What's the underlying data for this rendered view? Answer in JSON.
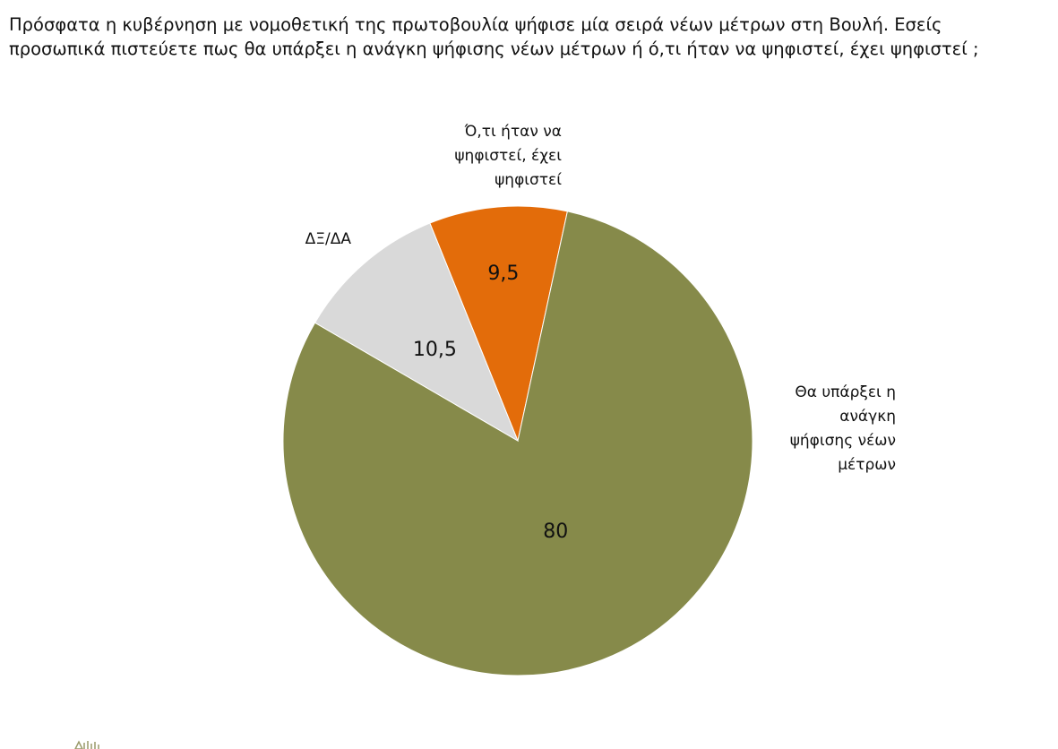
{
  "question": {
    "line1": "Πρόσφατα η κυβέρνηση με νομοθετική της πρωτοβουλία ψήφισε μία σειρά νέων μέτρων στη Βουλή. Εσείς",
    "line2": "προσωπικά πιστεύετε πως θα υπάρξει η ανάγκη ψήφισης νέων μέτρων ή ό,τι ήταν να ψηφιστεί, έχει ψηφιστεί ;"
  },
  "chart_data": {
    "type": "pie",
    "title": "Πρόσφατα η κυβέρνηση με νομοθετική της πρωτοβουλία ψήφισε μία σειρά νέων μέτρων στη Βουλή. Εσείς προσωπικά πιστεύετε πως θα υπάρξει η ανάγκη ψήφισης νέων μέτρων ή ό,τι ήταν να ψηφιστεί, έχει ψηφιστεί ;",
    "slices": [
      {
        "label": [
          "Ό,τι ήταν να",
          "ψηφιστεί, έχει",
          "ψηφιστεί"
        ],
        "value": 9.5,
        "display": "9,5",
        "color": "#E36C0A"
      },
      {
        "label": [
          "Θα υπάρξει η",
          "ανάγκη",
          "ψήφισης νέων",
          "μέτρων"
        ],
        "value": 80,
        "display": "80",
        "color": "#868A4A"
      },
      {
        "label": [
          "ΔΞ/ΔΑ"
        ],
        "value": 10.5,
        "display": "10,5",
        "color": "#D9D9D9"
      }
    ],
    "legend": "none",
    "data_labels": "inside"
  }
}
